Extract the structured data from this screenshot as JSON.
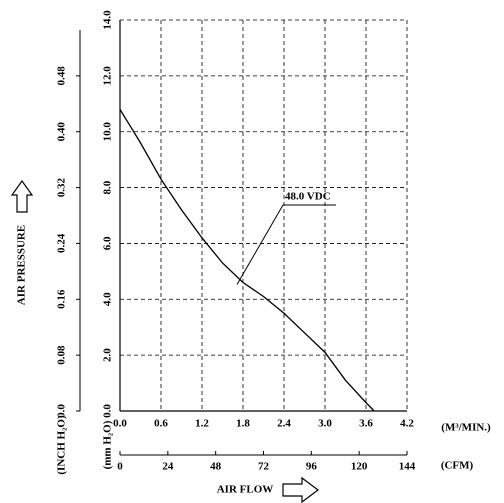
{
  "chart_data": {
    "type": "line",
    "x_label": "AIR FLOW",
    "y_label": "AIR PRESSURE",
    "x_unit": "(M³/MIN.)",
    "x2_unit": "(CFM)",
    "y_unit": "(mm H₂O)",
    "y2_unit": "(INCH H₂O)",
    "xlim": [
      0,
      4.2
    ],
    "xticks": [
      {
        "value": 0,
        "label": "0.0"
      },
      0.6,
      1.2,
      1.8,
      2.4,
      {
        "value": 3,
        "label": "3.0"
      },
      3.6,
      4.2
    ],
    "x2lim": [
      0,
      144
    ],
    "x2ticks": [
      0,
      24,
      48,
      72,
      96,
      120,
      144
    ],
    "ylim": [
      0,
      14
    ],
    "yticks": [
      {
        "value": 0,
        "label": "0.0"
      },
      {
        "value": 2,
        "label": "2.0"
      },
      {
        "value": 4,
        "label": "4.0"
      },
      {
        "value": 6,
        "label": "6.0"
      },
      {
        "value": 8,
        "label": "8.0"
      },
      {
        "value": 10,
        "label": "10.0"
      },
      {
        "value": 12,
        "label": "12.0"
      },
      {
        "value": 14,
        "label": "14.0"
      }
    ],
    "y2lim": [
      0,
      0.56
    ],
    "y2ticks": [
      {
        "value": 0,
        "label": "0.0"
      },
      0.08,
      0.16,
      0.24,
      0.32,
      {
        "value": 0.4,
        "label": "0.40"
      },
      0.48
    ],
    "grid": true,
    "series": [
      {
        "name": "48.0 VDC",
        "color": "#000000",
        "x": [
          0,
          0.3,
          0.6,
          0.9,
          1.2,
          1.5,
          1.8,
          2.1,
          2.4,
          2.7,
          3.0,
          3.3,
          3.6,
          3.72
        ],
        "values": [
          10.8,
          9.6,
          8.3,
          7.2,
          6.2,
          5.3,
          4.6,
          4.1,
          3.5,
          2.8,
          2.1,
          1.1,
          0.3,
          0
        ]
      }
    ]
  }
}
